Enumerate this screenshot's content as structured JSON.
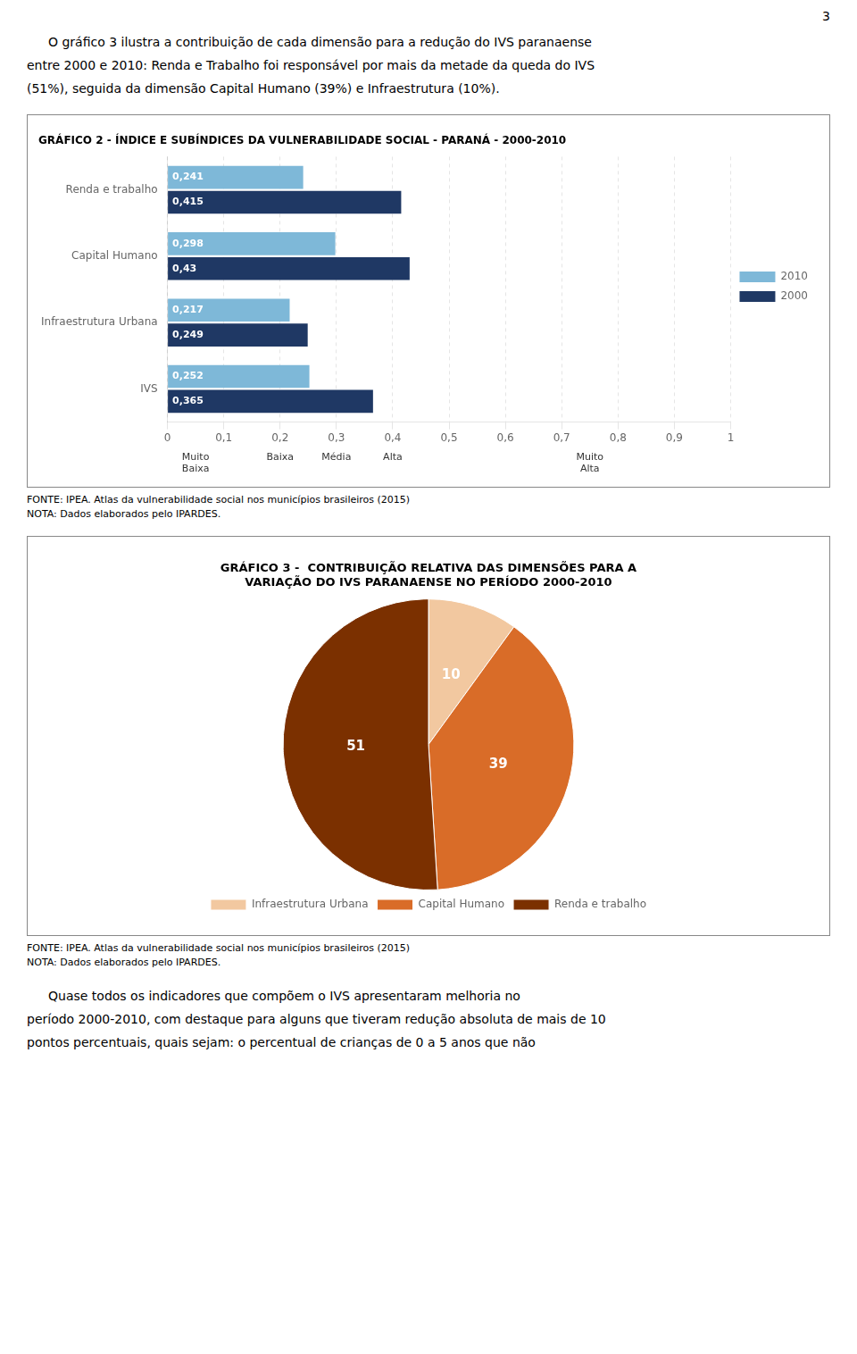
{
  "page_number": "3",
  "intro_text": [
    "O gráfico 3 ilustra a contribuição de cada dimensão para a redução do IVS paranaense",
    "entre 2000 e 2010: Renda e Trabalho foi responsável por mais da metade da queda do IVS",
    "(51%), seguida da dimensão Capital Humano (39%) e Infraestrutura (10%)."
  ],
  "chart_data": [
    {
      "type": "bar",
      "orientation": "horizontal",
      "title": "GRÁFICO 2 - ÍNDICE E SUBÍNDICES DA VULNERABILIDADE SOCIAL - PARANÁ - 2000-2010",
      "categories": [
        "Renda e trabalho",
        "Capital Humano",
        "Infraestrutura Urbana",
        "IVS"
      ],
      "series": [
        {
          "name": "2010",
          "color": "#7eb8d8",
          "values": [
            0.241,
            0.298,
            0.217,
            0.252
          ],
          "value_labels": [
            "0,241",
            "0,298",
            "0,217",
            "0,252"
          ]
        },
        {
          "name": "2000",
          "color": "#1f3864",
          "values": [
            0.415,
            0.43,
            0.249,
            0.365
          ],
          "value_labels": [
            "0,415",
            "0,43",
            "0,249",
            "0,365"
          ]
        }
      ],
      "xlim": [
        0,
        1
      ],
      "xticks": [
        0,
        {
          "value": 0.1,
          "label": "0,1"
        },
        {
          "value": 0.2,
          "label": "0,2"
        },
        {
          "value": 0.3,
          "label": "0,3"
        },
        {
          "value": 0.4,
          "label": "0,4"
        },
        {
          "value": 0.5,
          "label": "0,5"
        },
        {
          "value": 0.6,
          "label": "0,6"
        },
        {
          "value": 0.7,
          "label": "0,7"
        },
        {
          "value": 0.8,
          "label": "0,8"
        },
        {
          "value": 0.9,
          "label": "0,9"
        },
        1
      ],
      "grid": true,
      "data_labels": true,
      "legend": "right",
      "annotations": [
        {
          "x": 0.05,
          "text": "Muito\nBaixa"
        },
        {
          "x": 0.2,
          "text": "Baixa"
        },
        {
          "x": 0.3,
          "text": "Média"
        },
        {
          "x": 0.4,
          "text": "Alta"
        },
        {
          "x": 0.75,
          "text": "Muito\nAlta"
        }
      ],
      "source": "FONTE: IPEA. Atlas da vulnerabilidade social nos municípios brasileiros (2015)",
      "note": "NOTA: Dados elaborados pelo IPARDES."
    },
    {
      "type": "pie",
      "title": "GRÁFICO 3 -  CONTRIBUIÇÃO RELATIVA DAS DIMENSÕES PARA A\nVARIAÇÃO DO IVS PARANAENSE NO PERÍODO 2000-2010",
      "categories": [
        "Infraestrutura Urbana",
        "Capital Humano",
        "Renda e trabalho"
      ],
      "values": [
        10,
        39,
        51
      ],
      "colors": [
        "#f2c8a0",
        "#d96c28",
        "#7b3000"
      ],
      "data_labels": true,
      "legend": "bottom",
      "source": "FONTE: IPEA. Atlas da vulnerabilidade social nos municípios brasileiros (2015)",
      "note": "NOTA: Dados elaborados pelo IPARDES."
    }
  ],
  "bottom_text": [
    "Quase todos os indicadores que compõem o IVS apresentaram melhoria no",
    "período 2000-2010, com destaque para alguns que tiveram redução absoluta de mais de 10",
    "pontos percentuais, quais sejam: o percentual de crianças de 0 a 5 anos que não"
  ]
}
